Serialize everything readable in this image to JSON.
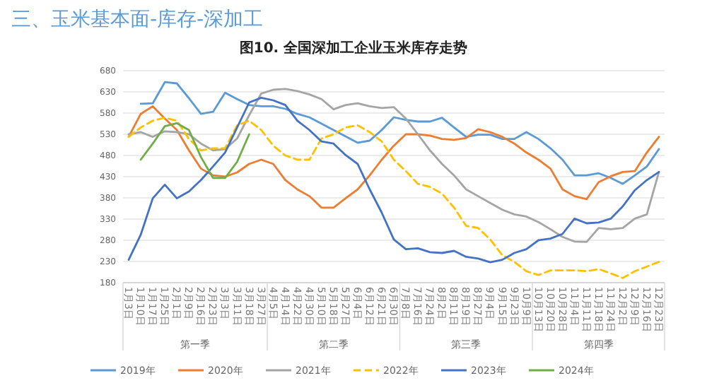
{
  "chart_data": {
    "type": "line",
    "title": "图10. 全国深加工企业玉米库存走势",
    "subtitle": "三、玉米基本面-库存-深加工",
    "categories": [
      "1月3日",
      "1月10日",
      "1月17日",
      "1月25日",
      "2月1日",
      "2月9日",
      "2月16日",
      "2月23日",
      "3月3日",
      "3月11日",
      "3月18日",
      "3月27日",
      "4月5日",
      "4月14日",
      "4月22日",
      "4月30日",
      "5月10日",
      "5月18日",
      "5月27日",
      "6月4日",
      "6月12日",
      "6月21日",
      "6月30日",
      "7月8日",
      "7月16日",
      "7月24日",
      "8月2日",
      "8月11日",
      "8月19日",
      "8月27日",
      "9月4日",
      "9月15日",
      "9月23日",
      "10月9日",
      "10月13日",
      "10月20日",
      "10月28日",
      "11月4日",
      "11月11日",
      "11月18日",
      "11月24日",
      "12月2日",
      "12月9日",
      "12月16日",
      "12月23日"
    ],
    "series": [
      {
        "name": "2019年",
        "color": "#5b9bd5",
        "values": [
          null,
          602,
          603,
          653,
          650,
          615,
          578,
          583,
          628,
          613,
          599,
          596,
          596,
          590,
          578,
          570,
          555,
          540,
          525,
          510,
          515,
          540,
          570,
          564,
          560,
          560,
          569,
          546,
          524,
          529,
          529,
          519,
          519,
          535,
          519,
          497,
          470,
          433,
          433,
          438,
          427,
          413,
          433,
          454,
          495
        ]
      },
      {
        "name": "2020年",
        "color": "#ed7d31",
        "values": [
          524,
          578,
          596,
          567,
          540,
          492,
          449,
          433,
          430,
          440,
          460,
          470,
          460,
          422,
          400,
          384,
          357,
          357,
          379,
          400,
          433,
          470,
          503,
          530,
          530,
          527,
          519,
          517,
          521,
          542,
          535,
          524,
          508,
          487,
          470,
          449,
          400,
          384,
          377,
          417,
          431,
          441,
          443,
          487,
          524
        ]
      },
      {
        "name": "2021年",
        "color": "#a5a5a5",
        "values": [
          530,
          535,
          524,
          537,
          535,
          530,
          508,
          492,
          495,
          520,
          575,
          626,
          635,
          637,
          632,
          624,
          613,
          589,
          599,
          603,
          596,
          592,
          594,
          567,
          530,
          492,
          460,
          433,
          400,
          384,
          368,
          352,
          341,
          336,
          323,
          306,
          288,
          277,
          276,
          309,
          306,
          309,
          331,
          341,
          441
        ]
      },
      {
        "name": "2022年",
        "color": "#ffc000",
        "line_style": "dashed",
        "values": [
          524,
          546,
          562,
          569,
          562,
          519,
          492,
          497,
          497,
          551,
          562,
          540,
          503,
          480,
          470,
          470,
          520,
          530,
          546,
          551,
          535,
          513,
          470,
          443,
          413,
          406,
          390,
          357,
          314,
          309,
          282,
          245,
          229,
          207,
          198,
          209,
          209,
          209,
          207,
          212,
          202,
          191,
          207,
          218,
          229
        ]
      },
      {
        "name": "2023年",
        "color": "#4472c4",
        "values": [
          234,
          293,
          379,
          411,
          379,
          395,
          422,
          454,
          487,
          546,
          605,
          616,
          610,
          599,
          562,
          540,
          513,
          508,
          481,
          460,
          400,
          345,
          282,
          259,
          261,
          252,
          250,
          255,
          241,
          237,
          228,
          234,
          250,
          259,
          280,
          284,
          295,
          331,
          320,
          322,
          331,
          360,
          398,
          422,
          441
        ]
      },
      {
        "name": "2024年",
        "color": "#70ad47",
        "values": [
          null,
          470,
          508,
          549,
          556,
          540,
          476,
          427,
          427,
          465,
          530,
          null,
          null,
          null,
          null,
          null,
          null,
          null,
          null,
          null,
          null,
          null,
          null,
          null,
          null,
          null,
          null,
          null,
          null,
          null,
          null,
          null,
          null,
          null,
          null,
          null,
          null,
          null,
          null,
          null,
          null,
          null,
          null,
          null,
          null
        ]
      }
    ],
    "ylim": [
      180,
      680
    ],
    "yticks": [
      180,
      230,
      280,
      330,
      380,
      430,
      480,
      530,
      580,
      630,
      680
    ],
    "grid": "y",
    "legend": "bottom",
    "marker": "none",
    "annotations": [
      "第一季",
      "第二季",
      "第三季",
      "第四季"
    ]
  }
}
